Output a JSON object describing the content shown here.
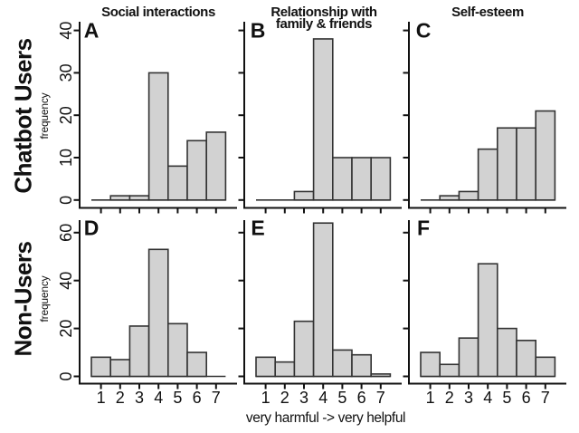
{
  "figure": {
    "background": "#ffffff",
    "bar_fill": "#d2d2d2",
    "bar_stroke": "#333333",
    "axis_color": "#111111",
    "text_color": "#111111"
  },
  "header": {
    "column_titles": [
      "Social interactions",
      "Relationship with\nfamily & friends",
      "Self-esteem"
    ]
  },
  "rows": [
    {
      "label": "Chatbot Users",
      "axis_title": "frequency"
    },
    {
      "label": "Non-Users",
      "axis_title": "frequency"
    }
  ],
  "x_axis_label": "very harmful -> very helpful",
  "chart_data": {
    "type": "bar",
    "subtype": "histogram-grid",
    "grid": "off",
    "legend": "none",
    "x_label": "very harmful -> very helpful",
    "categories": [
      1,
      2,
      3,
      4,
      5,
      6,
      7
    ],
    "x_tick_labels": [
      "1",
      "2",
      "3",
      "4",
      "5",
      "6",
      "7"
    ],
    "rows": [
      {
        "group": "Chatbot Users",
        "ylabel": "frequency",
        "ylim": [
          0,
          42
        ],
        "yticks": [
          0,
          10,
          20,
          30,
          40
        ]
      },
      {
        "group": "Non-Users",
        "ylabel": "frequency",
        "ylim": [
          0,
          66
        ],
        "yticks": [
          0,
          20,
          40,
          60
        ]
      }
    ],
    "columns": [
      "Social interactions",
      "Relationship with family & friends",
      "Self-esteem"
    ],
    "panels": [
      {
        "label": "A",
        "row": 0,
        "col": 0,
        "group": "Chatbot Users",
        "measure": "Social interactions",
        "values": [
          0,
          1,
          1,
          30,
          8,
          14,
          16
        ]
      },
      {
        "label": "B",
        "row": 0,
        "col": 1,
        "group": "Chatbot Users",
        "measure": "Relationship with family & friends",
        "values": [
          0,
          0,
          2,
          38,
          10,
          10,
          10
        ]
      },
      {
        "label": "C",
        "row": 0,
        "col": 2,
        "group": "Chatbot Users",
        "measure": "Self-esteem",
        "values": [
          0,
          1,
          2,
          12,
          17,
          17,
          21
        ]
      },
      {
        "label": "D",
        "row": 1,
        "col": 0,
        "group": "Non-Users",
        "measure": "Social interactions",
        "values": [
          8,
          7,
          21,
          53,
          22,
          10,
          0
        ]
      },
      {
        "label": "E",
        "row": 1,
        "col": 1,
        "group": "Non-Users",
        "measure": "Relationship with family & friends",
        "values": [
          8,
          6,
          23,
          64,
          11,
          9,
          1
        ]
      },
      {
        "label": "F",
        "row": 1,
        "col": 2,
        "group": "Non-Users",
        "measure": "Self-esteem",
        "values": [
          10,
          5,
          16,
          47,
          20,
          15,
          8
        ]
      }
    ]
  }
}
